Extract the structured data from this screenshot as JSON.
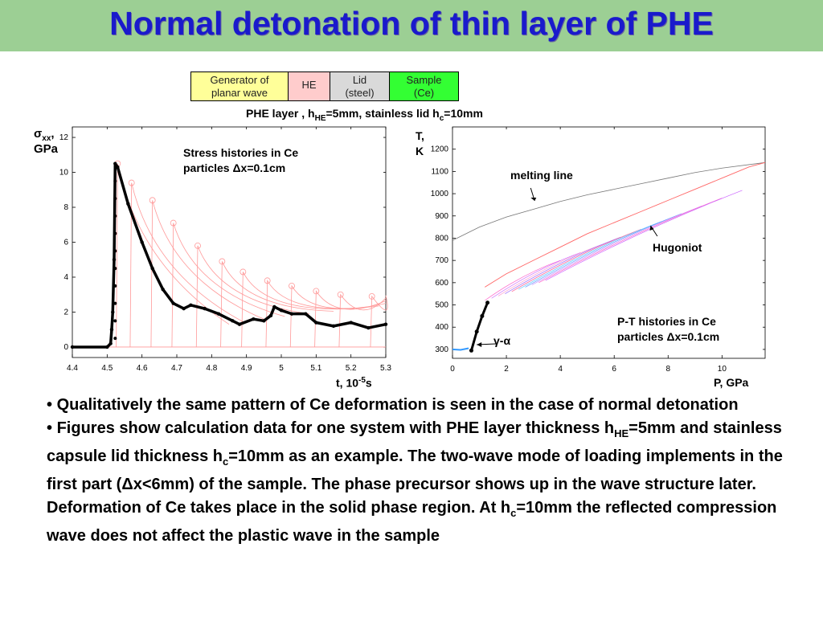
{
  "title": "Normal detonation of thin layer of PHE",
  "setup": {
    "cells": [
      {
        "line1": "Generator of",
        "line2": "planar wave"
      },
      {
        "line1": "HE",
        "line2": ""
      },
      {
        "line1": "Lid",
        "line2": "(steel)"
      },
      {
        "line1": "Sample",
        "line2": "(Ce)"
      }
    ],
    "caption_a": "PHE layer , h",
    "caption_sub_he": "HE",
    "caption_b": "=5mm, stainless lid h",
    "caption_sub_c": "c",
    "caption_c": "=10mm"
  },
  "chart_data": [
    {
      "type": "line",
      "ylabel_sym": "σ",
      "ylabel_sub": "xx",
      "ylabel_rest": ",",
      "ylabel_unit": "GPa",
      "xlabel_main": "t, 10",
      "xlabel_sup": "-5",
      "xlabel_unit": "s",
      "annotation_line1": "Stress histories in Ce",
      "annotation_line2": "particles Δx=0.1cm",
      "xlim": [
        4.4,
        5.3
      ],
      "ylim": [
        -0.6,
        12.6
      ],
      "x_ticks": [
        "4.4",
        "4.5",
        "4.6",
        "4.7",
        "4.8",
        "4.9",
        "5",
        "5.1",
        "5.2",
        "5.3"
      ],
      "y_ticks": [
        "0",
        "2",
        "4",
        "6",
        "8",
        "10",
        "12"
      ],
      "series": [
        {
          "color": "#000000",
          "x": [
            4.4,
            4.5,
            4.51,
            4.513,
            4.516,
            4.52,
            4.523,
            4.53,
            4.56,
            4.6,
            4.63,
            4.66,
            4.69,
            4.72,
            4.74,
            4.78,
            4.82,
            4.86,
            4.88,
            4.92,
            4.95,
            4.97,
            4.98,
            5.0,
            5.03,
            5.07,
            5.1,
            5.15,
            5.2,
            5.25,
            5.3
          ],
          "y": [
            0,
            0,
            0.2,
            1.0,
            2.0,
            5.0,
            10.5,
            10.3,
            8.2,
            6.0,
            4.5,
            3.3,
            2.5,
            2.2,
            2.4,
            2.2,
            1.9,
            1.5,
            1.3,
            1.6,
            1.5,
            1.8,
            2.3,
            2.1,
            1.9,
            1.9,
            1.4,
            1.2,
            1.4,
            1.1,
            1.3
          ]
        },
        {
          "color": "#ff9999",
          "peaks_x": [
            4.53,
            4.57,
            4.63,
            4.69,
            4.76,
            4.83,
            4.89,
            4.96,
            5.03,
            5.1,
            5.17,
            5.26
          ],
          "peaks_y": [
            10.5,
            9.4,
            8.4,
            7.1,
            5.8,
            4.9,
            4.3,
            3.8,
            3.5,
            3.2,
            3.0,
            2.9
          ]
        }
      ]
    },
    {
      "type": "line",
      "ylabel": "T,",
      "ylabel_unit": "K",
      "xlabel": "P, GPa",
      "annotation_line1": "P-T  histories in Ce",
      "annotation_line2": "particles Δx=0.1cm",
      "melting_label": "melting line",
      "hugoniot_label": "Hugoniot",
      "phase_label": "γ-α",
      "xlim": [
        0,
        11.6
      ],
      "ylim": [
        260,
        1300
      ],
      "x_ticks": [
        "0",
        "2",
        "4",
        "6",
        "8",
        "10"
      ],
      "y_ticks": [
        "300",
        "400",
        "500",
        "600",
        "700",
        "800",
        "900",
        "1000",
        "1100",
        "1200"
      ],
      "series": [
        {
          "name": "melting line",
          "color": "#777777",
          "x": [
            0,
            1,
            2,
            3,
            4,
            5,
            6,
            7,
            8,
            9,
            10,
            11.6
          ],
          "y": [
            790,
            850,
            895,
            930,
            965,
            995,
            1020,
            1045,
            1070,
            1095,
            1115,
            1140
          ]
        },
        {
          "name": "Hugoniot",
          "color": "#ff6666",
          "x": [
            1.2,
            2,
            3,
            4,
            5,
            6,
            7,
            8,
            9,
            10,
            11,
            11.6
          ],
          "y": [
            580,
            640,
            700,
            760,
            820,
            870,
            920,
            970,
            1020,
            1070,
            1120,
            1140
          ]
        },
        {
          "color": "#000000",
          "x": [
            0.7,
            0.9,
            1.1,
            1.3
          ],
          "y": [
            295,
            380,
            450,
            510
          ]
        },
        {
          "color": "#3399ff",
          "x": [
            0,
            0.3,
            0.6
          ],
          "y": [
            300,
            298,
            305
          ]
        }
      ]
    }
  ],
  "bullets": [
    {
      "symbol": "•",
      "text": "Qualitatively the same pattern of Ce deformation is seen in the case of normal detonation"
    },
    {
      "symbol": "•",
      "a": "Figures show calculation data for one system with PHE layer thickness h",
      "sub_he": "HE",
      "b": "=5mm and stainless capsule lid thickness h",
      "sub_c": "c",
      "c": "=10mm as an example. The two-wave mode of loading implements in the first part (Δx<6mm) of the sample. The phase precursor shows up in the wave structure later. Deformation of Ce takes place in the solid phase region. At h",
      "sub_c2": "c",
      "d": "=10mm the reflected compression wave does not affect the plastic wave in the sample"
    }
  ]
}
